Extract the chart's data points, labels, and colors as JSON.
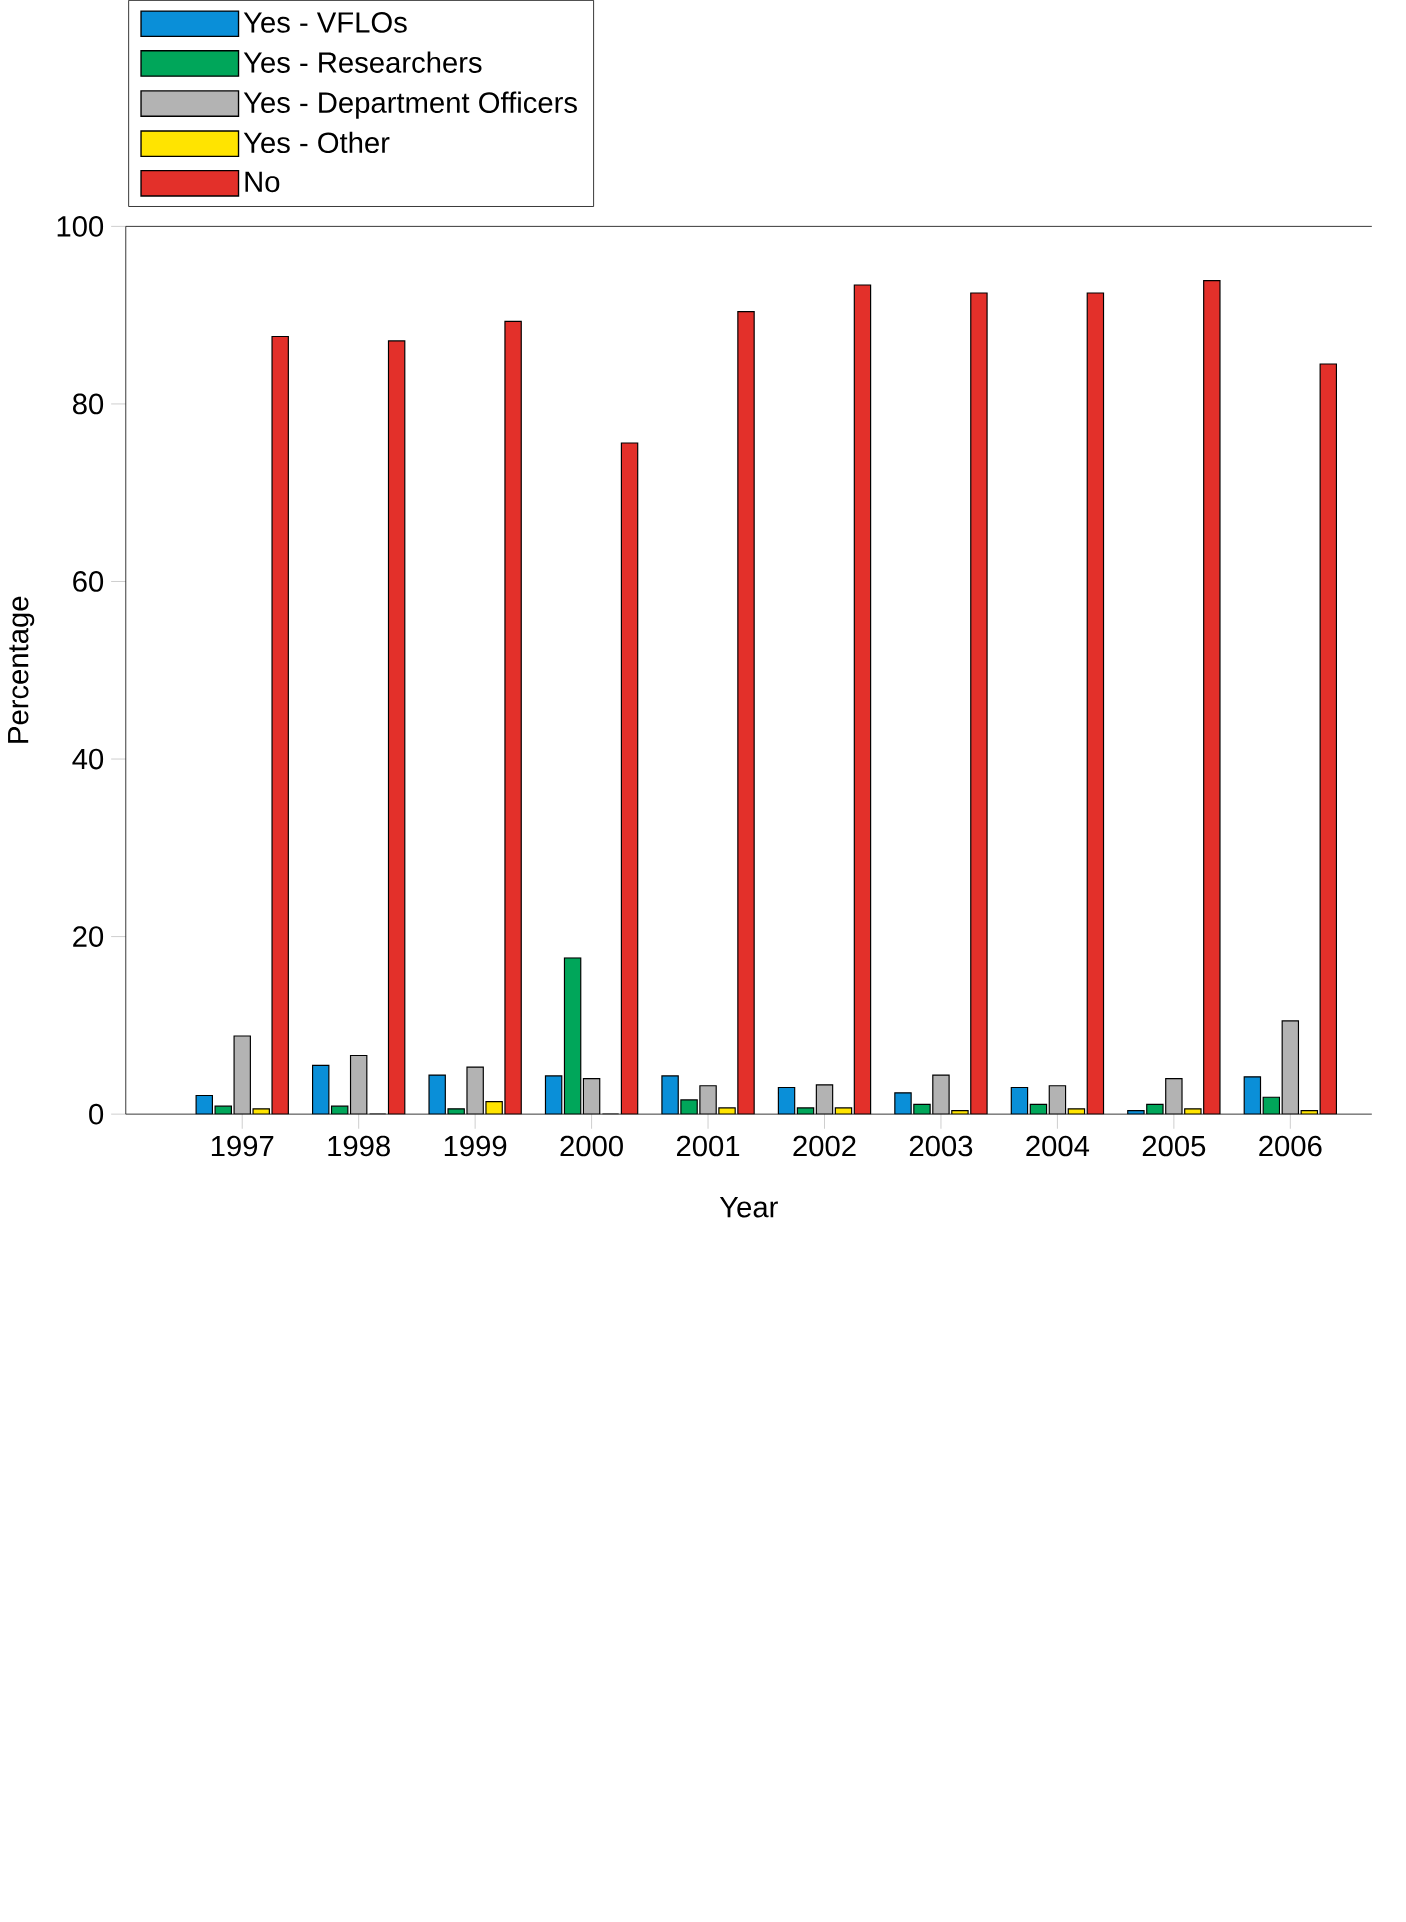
{
  "chart_data": {
    "type": "bar",
    "xlabel": "Year",
    "ylabel": "Percentage",
    "categories": [
      "1997",
      "1998",
      "1999",
      "2000",
      "2001",
      "2002",
      "2003",
      "2004",
      "2005",
      "2006"
    ],
    "series": [
      {
        "name": "Yes - VFLOs",
        "color": "#0a8fd8",
        "values": [
          2.1,
          5.5,
          4.4,
          4.3,
          4.3,
          3.0,
          2.4,
          3.0,
          0.4,
          4.2
        ]
      },
      {
        "name": "Yes - Researchers",
        "color": "#00a65a",
        "values": [
          0.9,
          0.9,
          0.6,
          17.6,
          1.6,
          0.7,
          1.1,
          1.1,
          1.1,
          1.9
        ]
      },
      {
        "name": "Yes - Department Officers",
        "color": "#b3b3b3",
        "values": [
          8.8,
          6.6,
          5.3,
          4.0,
          3.2,
          3.3,
          4.4,
          3.2,
          4.0,
          10.5
        ]
      },
      {
        "name": "Yes - Other",
        "color": "#ffe400",
        "values": [
          0.6,
          0,
          1.4,
          0,
          0.7,
          0.7,
          0.4,
          0.6,
          0.6,
          0.4
        ]
      },
      {
        "name": "No",
        "color": "#e3302a",
        "values": [
          87.6,
          87.1,
          89.3,
          75.6,
          90.4,
          93.4,
          92.5,
          92.5,
          93.9,
          84.5
        ]
      }
    ],
    "ylim": [
      0,
      100
    ],
    "yticks": [
      0,
      20,
      40,
      60,
      80,
      100
    ],
    "grid": false,
    "legend": "top left"
  }
}
